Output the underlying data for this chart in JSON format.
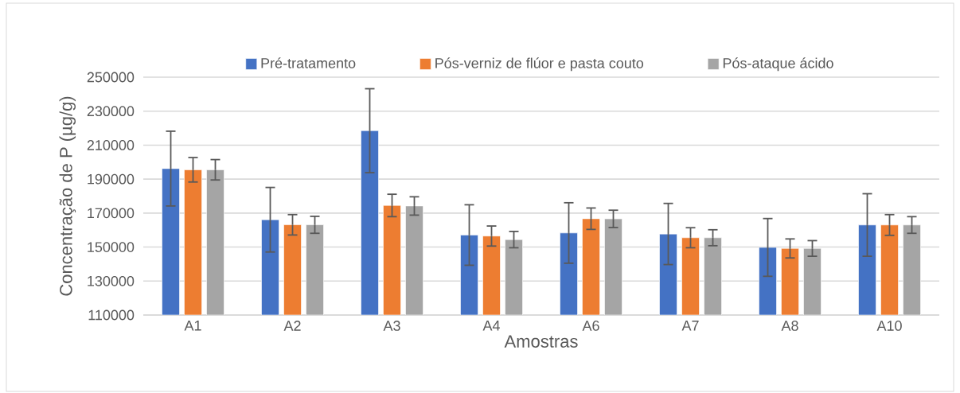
{
  "chart_data": {
    "type": "bar",
    "xlabel": "Amostras",
    "ylabel": "Concentração de P (µg/g)",
    "categories": [
      "A1",
      "A2",
      "A3",
      "A4",
      "A6",
      "A7",
      "A8",
      "A10"
    ],
    "series": [
      {
        "name": "Pré-tratamento",
        "color": "#4472c4",
        "values": [
          196200,
          166100,
          218500,
          157100,
          158300,
          157700,
          149800,
          163000
        ],
        "errors": [
          22000,
          19000,
          24700,
          17800,
          17800,
          18000,
          17000,
          18400
        ]
      },
      {
        "name": "Pós-verniz de flúor e pasta couto",
        "color": "#ed7d31",
        "values": [
          195500,
          163100,
          174500,
          156500,
          166700,
          155500,
          149200,
          163000
        ],
        "errors": [
          7200,
          6000,
          6600,
          5900,
          6300,
          5900,
          5600,
          6100
        ]
      },
      {
        "name": "Pós-ataque ácido",
        "color": "#a5a5a5",
        "values": [
          195500,
          163100,
          174200,
          154400,
          166600,
          155500,
          149200,
          163000
        ],
        "errors": [
          6000,
          5000,
          5400,
          4800,
          5100,
          4700,
          4600,
          4900
        ]
      }
    ],
    "ylim": [
      110000,
      250000
    ],
    "yticks": [
      110000,
      130000,
      150000,
      170000,
      190000,
      210000,
      230000,
      250000
    ],
    "grid": "y",
    "legend": "top"
  }
}
